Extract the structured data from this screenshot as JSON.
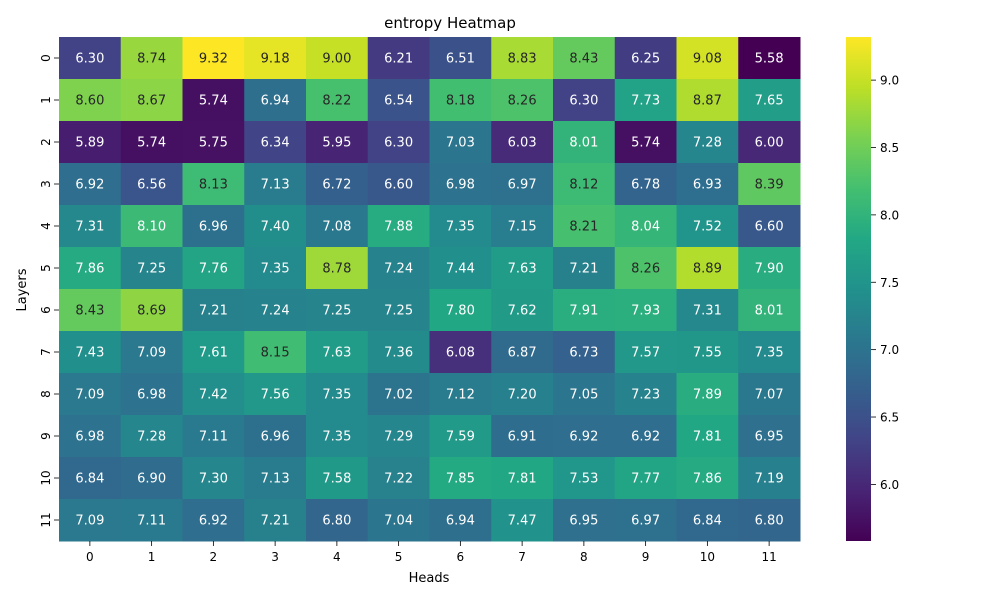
{
  "chart_data": {
    "type": "heatmap",
    "title": "entropy Heatmap",
    "xlabel": "Heads",
    "ylabel": "Layers",
    "x_categories": [
      "0",
      "1",
      "2",
      "3",
      "4",
      "5",
      "6",
      "7",
      "8",
      "9",
      "10",
      "11"
    ],
    "y_categories": [
      "0",
      "1",
      "2",
      "3",
      "4",
      "5",
      "6",
      "7",
      "8",
      "9",
      "10",
      "11"
    ],
    "values": [
      [
        6.3,
        8.74,
        9.32,
        9.18,
        9.0,
        6.21,
        6.51,
        8.83,
        8.43,
        6.25,
        9.08,
        5.58
      ],
      [
        8.6,
        8.67,
        5.74,
        6.94,
        8.22,
        6.54,
        8.18,
        8.26,
        6.3,
        7.73,
        8.87,
        7.65
      ],
      [
        5.89,
        5.74,
        5.75,
        6.34,
        5.95,
        6.3,
        7.03,
        6.03,
        8.01,
        5.74,
        7.28,
        6.0
      ],
      [
        6.92,
        6.56,
        8.13,
        7.13,
        6.72,
        6.6,
        6.98,
        6.97,
        8.12,
        6.78,
        6.93,
        8.39
      ],
      [
        7.31,
        8.1,
        6.96,
        7.4,
        7.08,
        7.88,
        7.35,
        7.15,
        8.21,
        8.04,
        7.52,
        6.6
      ],
      [
        7.86,
        7.25,
        7.76,
        7.35,
        8.78,
        7.24,
        7.44,
        7.63,
        7.21,
        8.26,
        8.89,
        7.9
      ],
      [
        8.43,
        8.69,
        7.21,
        7.24,
        7.25,
        7.25,
        7.8,
        7.62,
        7.91,
        7.93,
        7.31,
        8.01
      ],
      [
        7.43,
        7.09,
        7.61,
        8.15,
        7.63,
        7.36,
        6.08,
        6.87,
        6.73,
        7.57,
        7.55,
        7.35
      ],
      [
        7.09,
        6.98,
        7.42,
        7.56,
        7.35,
        7.02,
        7.12,
        7.2,
        7.05,
        7.23,
        7.89,
        7.07
      ],
      [
        6.98,
        7.28,
        7.11,
        6.96,
        7.35,
        7.29,
        7.59,
        6.91,
        6.92,
        6.92,
        7.81,
        6.95
      ],
      [
        6.84,
        6.9,
        7.3,
        7.13,
        7.58,
        7.22,
        7.85,
        7.81,
        7.53,
        7.77,
        7.86,
        7.19
      ],
      [
        7.09,
        7.11,
        6.92,
        7.21,
        6.8,
        7.04,
        6.94,
        7.47,
        6.95,
        6.97,
        6.84,
        6.8
      ]
    ],
    "colorscale": "viridis",
    "color_range": [
      5.58,
      9.32
    ],
    "colorbar_ticks": [
      "6.0",
      "6.5",
      "7.0",
      "7.5",
      "8.0",
      "8.5",
      "9.0"
    ],
    "value_format": "2 decimals",
    "legend_placement": "right colorbar"
  }
}
